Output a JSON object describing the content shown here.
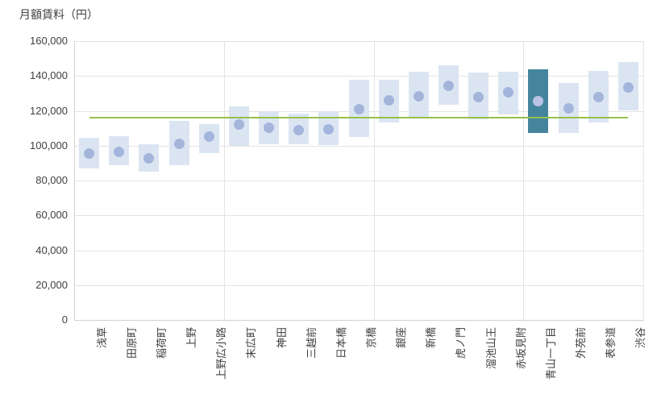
{
  "chart_data": {
    "type": "range-bar",
    "title": "月額賃料（円）",
    "xlabel": "",
    "ylabel": "月額賃料（円）",
    "ylim": [
      0,
      160000
    ],
    "y_ticks": [
      0,
      20000,
      40000,
      60000,
      80000,
      100000,
      120000,
      140000,
      160000
    ],
    "y_tick_labels": [
      "0",
      "20,000",
      "40,000",
      "60,000",
      "80,000",
      "100,000",
      "120,000",
      "140,000",
      "160,000"
    ],
    "grid": "on",
    "legend": "none",
    "group_dividers_after": [
      5,
      10,
      15
    ],
    "reference_line": {
      "value": 116000
    },
    "categories": [
      "浅草",
      "田原町",
      "稲荷町",
      "上野",
      "上野広小路",
      "末広町",
      "神田",
      "三越前",
      "日本橋",
      "京橋",
      "銀座",
      "新橋",
      "虎ノ門",
      "溜池山王",
      "赤坂見附",
      "青山一丁目",
      "外苑前",
      "表参道",
      "渋谷"
    ],
    "stations": [
      {
        "label": "浅草",
        "min": 87000,
        "max": 104500,
        "avg": 95500,
        "highlight": false
      },
      {
        "label": "田原町",
        "min": 89000,
        "max": 105500,
        "avg": 96500,
        "highlight": false
      },
      {
        "label": "稲荷町",
        "min": 85000,
        "max": 101000,
        "avg": 92500,
        "highlight": false
      },
      {
        "label": "上野",
        "min": 89000,
        "max": 114000,
        "avg": 101000,
        "highlight": false
      },
      {
        "label": "上野広小路",
        "min": 95500,
        "max": 112500,
        "avg": 105000,
        "highlight": false
      },
      {
        "label": "末広町",
        "min": 100000,
        "max": 122500,
        "avg": 112000,
        "highlight": false
      },
      {
        "label": "神田",
        "min": 101000,
        "max": 120000,
        "avg": 110500,
        "highlight": false
      },
      {
        "label": "三越前",
        "min": 101000,
        "max": 118500,
        "avg": 109000,
        "highlight": false
      },
      {
        "label": "日本橋",
        "min": 100500,
        "max": 120000,
        "avg": 109500,
        "highlight": false
      },
      {
        "label": "京橋",
        "min": 105000,
        "max": 138000,
        "avg": 121000,
        "highlight": false
      },
      {
        "label": "銀座",
        "min": 113500,
        "max": 138000,
        "avg": 126000,
        "highlight": false
      },
      {
        "label": "新橋",
        "min": 115500,
        "max": 142500,
        "avg": 128500,
        "highlight": false
      },
      {
        "label": "虎ノ門",
        "min": 123500,
        "max": 146000,
        "avg": 134500,
        "highlight": false
      },
      {
        "label": "溜池山王",
        "min": 115000,
        "max": 142000,
        "avg": 128000,
        "highlight": false
      },
      {
        "label": "赤坂見附",
        "min": 118000,
        "max": 142500,
        "avg": 130500,
        "highlight": false
      },
      {
        "label": "青山一丁目",
        "min": 107500,
        "max": 144000,
        "avg": 125500,
        "highlight": true
      },
      {
        "label": "外苑前",
        "min": 107500,
        "max": 136000,
        "avg": 121500,
        "highlight": false
      },
      {
        "label": "表参道",
        "min": 113500,
        "max": 143000,
        "avg": 128000,
        "highlight": false
      },
      {
        "label": "渋谷",
        "min": 120000,
        "max": 148000,
        "avg": 133500,
        "highlight": false
      }
    ],
    "colors": {
      "bar_fill": "#dbe5f2",
      "dot": "#a4b5dc",
      "highlight_fill": "#44859d",
      "highlight_dot": "#b9c3e3",
      "reference_line": "#97c04a",
      "gridline": "#e4e4e4",
      "axis_line": "#d2d2d2",
      "text": "#404040"
    }
  }
}
